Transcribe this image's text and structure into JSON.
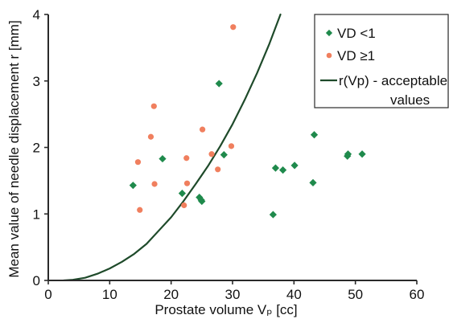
{
  "chart_data": {
    "type": "scatter",
    "title": "",
    "xlabel": "Prostate volume Vₚ [cc]",
    "ylabel": "Mean value of needle displacement r [mm]",
    "xlim": [
      0,
      60
    ],
    "ylim": [
      0,
      4
    ],
    "x_ticks": [
      0,
      10,
      20,
      30,
      40,
      50,
      60
    ],
    "y_ticks": [
      0,
      1,
      2,
      3,
      4
    ],
    "x_tick_labels": [
      "0",
      "10",
      "20",
      "30",
      "40",
      "50",
      "60"
    ],
    "y_tick_labels": [
      "0",
      "1",
      "2",
      "3",
      "4"
    ],
    "grid": false,
    "legend_position": "top-right",
    "series": [
      {
        "name": "VD <1",
        "marker": "diamond",
        "color": "#1f8a4c",
        "points": [
          [
            13.8,
            1.43
          ],
          [
            18.6,
            1.83
          ],
          [
            21.8,
            1.31
          ],
          [
            24.6,
            1.25
          ],
          [
            24.9,
            1.21
          ],
          [
            25.0,
            1.19
          ],
          [
            27.8,
            2.96
          ],
          [
            28.6,
            1.89
          ],
          [
            36.6,
            0.99
          ],
          [
            37.0,
            1.69
          ],
          [
            38.2,
            1.66
          ],
          [
            40.1,
            1.73
          ],
          [
            43.1,
            1.47
          ],
          [
            43.3,
            2.19
          ],
          [
            48.7,
            1.87
          ],
          [
            48.8,
            1.9
          ],
          [
            51.1,
            1.9
          ]
        ]
      },
      {
        "name": "VD ≥1",
        "marker": "circle",
        "color": "#f07f5e",
        "points": [
          [
            14.6,
            1.78
          ],
          [
            14.9,
            1.06
          ],
          [
            16.7,
            2.16
          ],
          [
            17.2,
            2.62
          ],
          [
            17.3,
            1.45
          ],
          [
            22.1,
            1.13
          ],
          [
            22.5,
            1.84
          ],
          [
            22.6,
            1.46
          ],
          [
            25.1,
            2.27
          ],
          [
            26.6,
            1.9
          ],
          [
            27.6,
            1.67
          ],
          [
            29.8,
            2.02
          ],
          [
            30.1,
            3.81
          ]
        ]
      },
      {
        "name": "r(Vp) - acceptable values",
        "type": "line",
        "color": "#1e4a2a",
        "points": [
          [
            2.5,
            0
          ],
          [
            4,
            0.01
          ],
          [
            6,
            0.04
          ],
          [
            8,
            0.1
          ],
          [
            10,
            0.18
          ],
          [
            12,
            0.28
          ],
          [
            14,
            0.4
          ],
          [
            16,
            0.55
          ],
          [
            18,
            0.75
          ],
          [
            20,
            0.95
          ],
          [
            22,
            1.19
          ],
          [
            24,
            1.45
          ],
          [
            26,
            1.72
          ],
          [
            28,
            2.02
          ],
          [
            30,
            2.35
          ],
          [
            32,
            2.72
          ],
          [
            34,
            3.12
          ],
          [
            36,
            3.56
          ],
          [
            37.8,
            4.0
          ]
        ]
      }
    ],
    "legend_entries": [
      {
        "label": "VD <1",
        "marker": "diamond",
        "color": "#1f8a4c"
      },
      {
        "label": "VD ≥1",
        "marker": "circle",
        "color": "#f07f5e"
      },
      {
        "label": "r(Vp) - acceptable values",
        "marker": "line",
        "color": "#1e4a2a"
      }
    ]
  }
}
